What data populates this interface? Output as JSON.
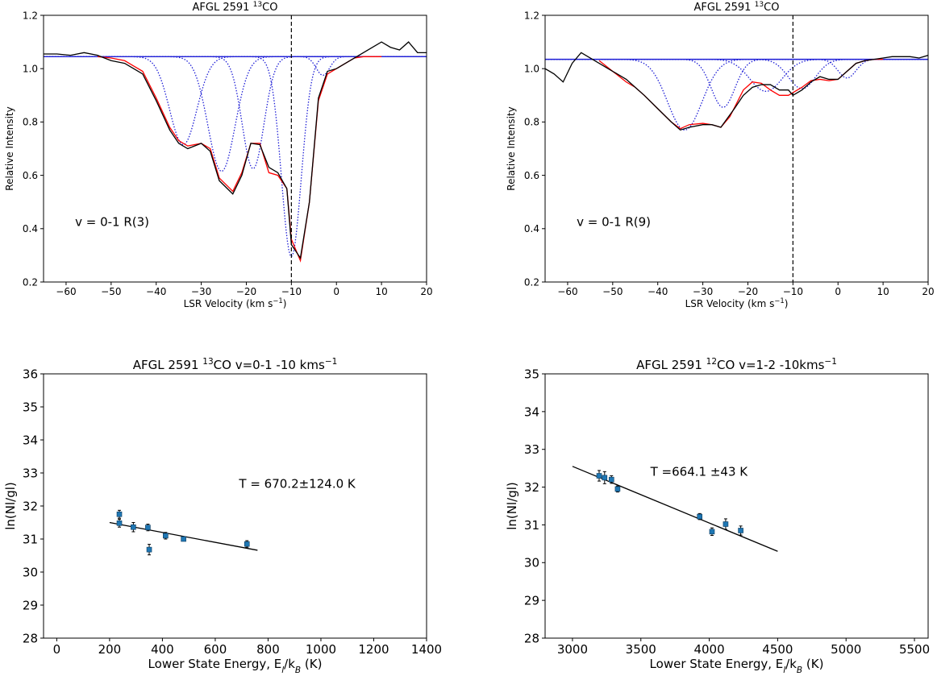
{
  "chart_data": [
    {
      "type": "line",
      "title": "AFGL 2591",
      "title_sup": "13",
      "title_suffix": "CO",
      "xlabel": "LSR Velocity (km s",
      "xlabel_sup": "−1",
      "xlabel_suffix": ")",
      "ylabel": "Relative Intensity",
      "xlim": [
        -65,
        20
      ],
      "ylim": [
        0.2,
        1.2
      ],
      "xticks": [
        -60,
        -50,
        -40,
        -30,
        -20,
        -10,
        0,
        10,
        20
      ],
      "yticks": [
        0.2,
        0.4,
        0.6,
        0.8,
        1.0,
        1.2
      ],
      "annotation": "v = 0-1 R(3)",
      "vline_x": -10,
      "continuum": 1.045,
      "components": [
        {
          "center": -34,
          "depth": 0.33,
          "width": 3.0
        },
        {
          "center": -25.5,
          "depth": 0.43,
          "width": 3.0
        },
        {
          "center": -18.5,
          "depth": 0.42,
          "width": 2.4
        },
        {
          "center": -10,
          "depth": 0.75,
          "width": 2.2
        },
        {
          "center": -3,
          "depth": 0.07,
          "width": 1.5
        }
      ],
      "series": [
        {
          "color": "#000000",
          "x": [
            -65,
            -62,
            -59,
            -56,
            -53,
            -50,
            -47,
            -45,
            -43,
            -40,
            -37,
            -35,
            -33,
            -30,
            -28,
            -26,
            -23,
            -21,
            -19,
            -17,
            -15,
            -13,
            -11,
            -10,
            -8,
            -6,
            -4,
            -2,
            0,
            2,
            4,
            6,
            8,
            10,
            12,
            14,
            16,
            18,
            20
          ],
          "y": [
            1.055,
            1.055,
            1.05,
            1.06,
            1.05,
            1.03,
            1.02,
            1.0,
            0.98,
            0.88,
            0.77,
            0.72,
            0.7,
            0.72,
            0.69,
            0.58,
            0.53,
            0.6,
            0.72,
            0.715,
            0.63,
            0.61,
            0.55,
            0.34,
            0.29,
            0.5,
            0.89,
            0.99,
            1.0,
            1.02,
            1.04,
            1.06,
            1.08,
            1.1,
            1.08,
            1.07,
            1.1,
            1.06,
            1.06
          ]
        },
        {
          "color": "#ff0000",
          "x": [
            -53,
            -50,
            -47,
            -45,
            -43,
            -40,
            -37,
            -35,
            -33,
            -30,
            -28,
            -26,
            -23,
            -21,
            -19,
            -17,
            -15,
            -13,
            -11,
            -10,
            -8,
            -6,
            -4,
            -2,
            0,
            2,
            4,
            6,
            8,
            10
          ],
          "y": [
            1.045,
            1.04,
            1.03,
            1.01,
            0.99,
            0.89,
            0.78,
            0.73,
            0.71,
            0.72,
            0.7,
            0.59,
            0.54,
            0.61,
            0.72,
            0.72,
            0.61,
            0.6,
            0.55,
            0.36,
            0.28,
            0.5,
            0.88,
            0.98,
            1.0,
            1.02,
            1.04,
            1.045,
            1.045,
            1.045
          ]
        }
      ]
    },
    {
      "type": "line",
      "title": "AFGL 2591",
      "title_sup": "13",
      "title_suffix": "CO",
      "xlabel": "LSR Velocity (km s",
      "xlabel_sup": "−1",
      "xlabel_suffix": ")",
      "ylabel": "Relative Intensity",
      "xlim": [
        -65,
        20
      ],
      "ylim": [
        0.2,
        1.2
      ],
      "xticks": [
        -60,
        -50,
        -40,
        -30,
        -20,
        -10,
        0,
        10,
        20
      ],
      "yticks": [
        0.2,
        0.4,
        0.6,
        0.8,
        1.0,
        1.2
      ],
      "annotation": "v = 0-1 R(9)",
      "vline_x": -10,
      "continuum": 1.035,
      "components": [
        {
          "center": -34,
          "depth": 0.265,
          "width": 3.8
        },
        {
          "center": -25.5,
          "depth": 0.18,
          "width": 2.6
        },
        {
          "center": -16,
          "depth": 0.12,
          "width": 3.6
        },
        {
          "center": -8,
          "depth": 0.11,
          "width": 3.0
        },
        {
          "center": 2,
          "depth": 0.07,
          "width": 2.0
        }
      ],
      "series": [
        {
          "color": "#000000",
          "x": [
            -65,
            -63,
            -61,
            -59,
            -57,
            -55,
            -53,
            -50,
            -47,
            -45,
            -43,
            -40,
            -37,
            -35,
            -33,
            -30,
            -28,
            -26,
            -23,
            -21,
            -19,
            -17,
            -15,
            -13,
            -11,
            -10,
            -8,
            -6,
            -4,
            -2,
            0,
            2,
            4,
            6,
            8,
            10,
            12,
            14,
            16,
            18,
            20
          ],
          "y": [
            1.0,
            0.98,
            0.95,
            1.02,
            1.06,
            1.04,
            1.02,
            0.99,
            0.96,
            0.93,
            0.9,
            0.85,
            0.8,
            0.77,
            0.78,
            0.79,
            0.79,
            0.78,
            0.85,
            0.9,
            0.93,
            0.94,
            0.94,
            0.92,
            0.92,
            0.9,
            0.92,
            0.95,
            0.97,
            0.96,
            0.96,
            0.99,
            1.02,
            1.03,
            1.035,
            1.04,
            1.045,
            1.045,
            1.045,
            1.04,
            1.05
          ]
        },
        {
          "color": "#ff0000",
          "x": [
            -53,
            -50,
            -47,
            -45,
            -43,
            -40,
            -37,
            -35,
            -33,
            -30,
            -28,
            -26,
            -24,
            -21,
            -19,
            -17,
            -15,
            -13,
            -11,
            -10,
            -8,
            -6,
            -4,
            -2,
            0,
            2,
            4,
            6,
            8,
            10
          ],
          "y": [
            1.03,
            0.99,
            0.95,
            0.93,
            0.9,
            0.85,
            0.8,
            0.775,
            0.79,
            0.795,
            0.79,
            0.78,
            0.82,
            0.92,
            0.95,
            0.945,
            0.92,
            0.9,
            0.9,
            0.91,
            0.93,
            0.955,
            0.96,
            0.955,
            0.96,
            0.99,
            1.02,
            1.03,
            1.035,
            1.035
          ]
        }
      ]
    },
    {
      "type": "scatter",
      "title": "AFGL 2591",
      "title_sup": "13",
      "title_suffix": "CO v=0-1 -10 kms",
      "title_sup2": "−1",
      "xlabel": "Lower State Energy, E",
      "xlabel_sub": "l",
      "xlabel_mid": "/k",
      "xlabel_sub2": "B",
      "xlabel_suffix": " (K)",
      "ylabel": "ln(Nl/gl)",
      "xlim": [
        -50,
        1400
      ],
      "ylim": [
        28,
        36
      ],
      "xticks": [
        0,
        200,
        400,
        600,
        800,
        1000,
        1200,
        1400
      ],
      "yticks": [
        28,
        29,
        30,
        31,
        32,
        33,
        34,
        35,
        36
      ],
      "annotation": "T = 670.2±124.0 K",
      "points": [
        {
          "x": 237,
          "y": 31.75,
          "err": 0.12
        },
        {
          "x": 237,
          "y": 31.48,
          "err": 0.12
        },
        {
          "x": 290,
          "y": 31.36,
          "err": 0.14
        },
        {
          "x": 345,
          "y": 31.35,
          "err": 0.1
        },
        {
          "x": 350,
          "y": 30.68,
          "err": 0.16
        },
        {
          "x": 412,
          "y": 31.1,
          "err": 0.1
        },
        {
          "x": 480,
          "y": 31.0,
          "err": 0.06
        },
        {
          "x": 720,
          "y": 30.85,
          "err": 0.1
        }
      ],
      "fit_line": {
        "x": [
          200,
          760
        ],
        "y": [
          31.5,
          30.66
        ]
      }
    },
    {
      "type": "scatter",
      "title": "AFGL 2591",
      "title_sup": "12",
      "title_suffix": "CO v=1-2 -10kms",
      "title_sup2": "−1",
      "xlabel": "Lower State Energy, E",
      "xlabel_sub": "l",
      "xlabel_mid": "/k",
      "xlabel_sub2": "B",
      "xlabel_suffix": " (K)",
      "ylabel": "ln(Nl/gl)",
      "xlim": [
        2800,
        5600
      ],
      "ylim": [
        28,
        35
      ],
      "xticks": [
        3000,
        3500,
        4000,
        4500,
        5000,
        5500
      ],
      "yticks": [
        28,
        29,
        30,
        31,
        32,
        33,
        34,
        35
      ],
      "annotation": "T =664.1 ±43 K",
      "points": [
        {
          "x": 3195,
          "y": 32.3,
          "err": 0.14
        },
        {
          "x": 3235,
          "y": 32.25,
          "err": 0.16
        },
        {
          "x": 3285,
          "y": 32.2,
          "err": 0.1
        },
        {
          "x": 3330,
          "y": 31.95,
          "err": 0.08
        },
        {
          "x": 3930,
          "y": 31.22,
          "err": 0.08
        },
        {
          "x": 4020,
          "y": 30.82,
          "err": 0.1
        },
        {
          "x": 4120,
          "y": 31.02,
          "err": 0.14
        },
        {
          "x": 4230,
          "y": 30.85,
          "err": 0.12
        }
      ],
      "fit_line": {
        "x": [
          3000,
          4500
        ],
        "y": [
          32.55,
          30.3
        ]
      }
    }
  ]
}
